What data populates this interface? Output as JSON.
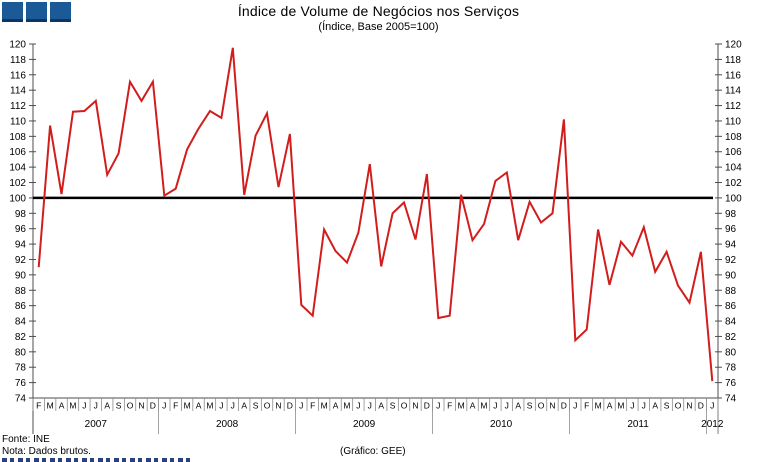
{
  "logo": {
    "square_color": "#1a5a96",
    "square_count": 3
  },
  "header": {
    "title": "Índice de Volume de Negócios nos Serviços",
    "subtitle": "(Índice, Base 2005=100)"
  },
  "footer": {
    "source": "Fonte: INE",
    "note": "Nota: Dados brutos.",
    "credit": "(Gráfico: GEE)"
  },
  "chart_data": {
    "type": "line",
    "title": "Índice de Volume de Negócios nos Serviços",
    "subtitle": "(Índice, Base 2005=100)",
    "ylim": [
      74,
      120
    ],
    "ytick_step": 2,
    "grid": false,
    "legend": "none",
    "baseline": 100,
    "series_color": "#d21d1d",
    "baseline_color": "#000000",
    "axis_color": "#4d4d4d",
    "separator_color": "#8c8c8c",
    "period": "Feb 2007 - Jan 2012",
    "month_labels": [
      "F",
      "M",
      "A",
      "M",
      "J",
      "J",
      "A",
      "S",
      "O",
      "N",
      "D",
      "J",
      "F",
      "M",
      "A",
      "M",
      "J",
      "J",
      "A",
      "S",
      "O",
      "N",
      "D",
      "J",
      "F",
      "M",
      "A",
      "M",
      "J",
      "J",
      "A",
      "S",
      "O",
      "N",
      "D",
      "J",
      "F",
      "M",
      "A",
      "M",
      "J",
      "J",
      "A",
      "S",
      "O",
      "N",
      "D",
      "J",
      "F",
      "M",
      "A",
      "M",
      "J",
      "J",
      "A",
      "S",
      "O",
      "N",
      "D",
      "J"
    ],
    "year_groups": [
      {
        "label": "2007",
        "months": 11
      },
      {
        "label": "2008",
        "months": 12
      },
      {
        "label": "2009",
        "months": 12
      },
      {
        "label": "2010",
        "months": 12
      },
      {
        "label": "2011",
        "months": 12
      },
      {
        "label": "2012",
        "months": 1
      }
    ],
    "values": [
      91.0,
      109.4,
      100.5,
      111.2,
      111.3,
      112.6,
      103.0,
      105.8,
      115.1,
      112.6,
      115.1,
      100.3,
      101.2,
      106.3,
      109.0,
      111.3,
      110.4,
      119.5,
      100.4,
      108.1,
      111.0,
      101.4,
      108.3,
      86.1,
      84.7,
      95.9,
      93.1,
      91.6,
      95.5,
      104.4,
      91.1,
      98.0,
      99.4,
      94.6,
      103.1,
      84.4,
      84.7,
      100.4,
      94.5,
      96.6,
      102.2,
      103.3,
      94.5,
      99.5,
      96.8,
      98.0,
      110.2,
      81.5,
      82.9,
      95.9,
      88.7,
      94.3,
      92.5,
      96.2,
      90.4,
      93.0,
      88.6,
      86.4,
      93.0,
      76.2
    ]
  }
}
